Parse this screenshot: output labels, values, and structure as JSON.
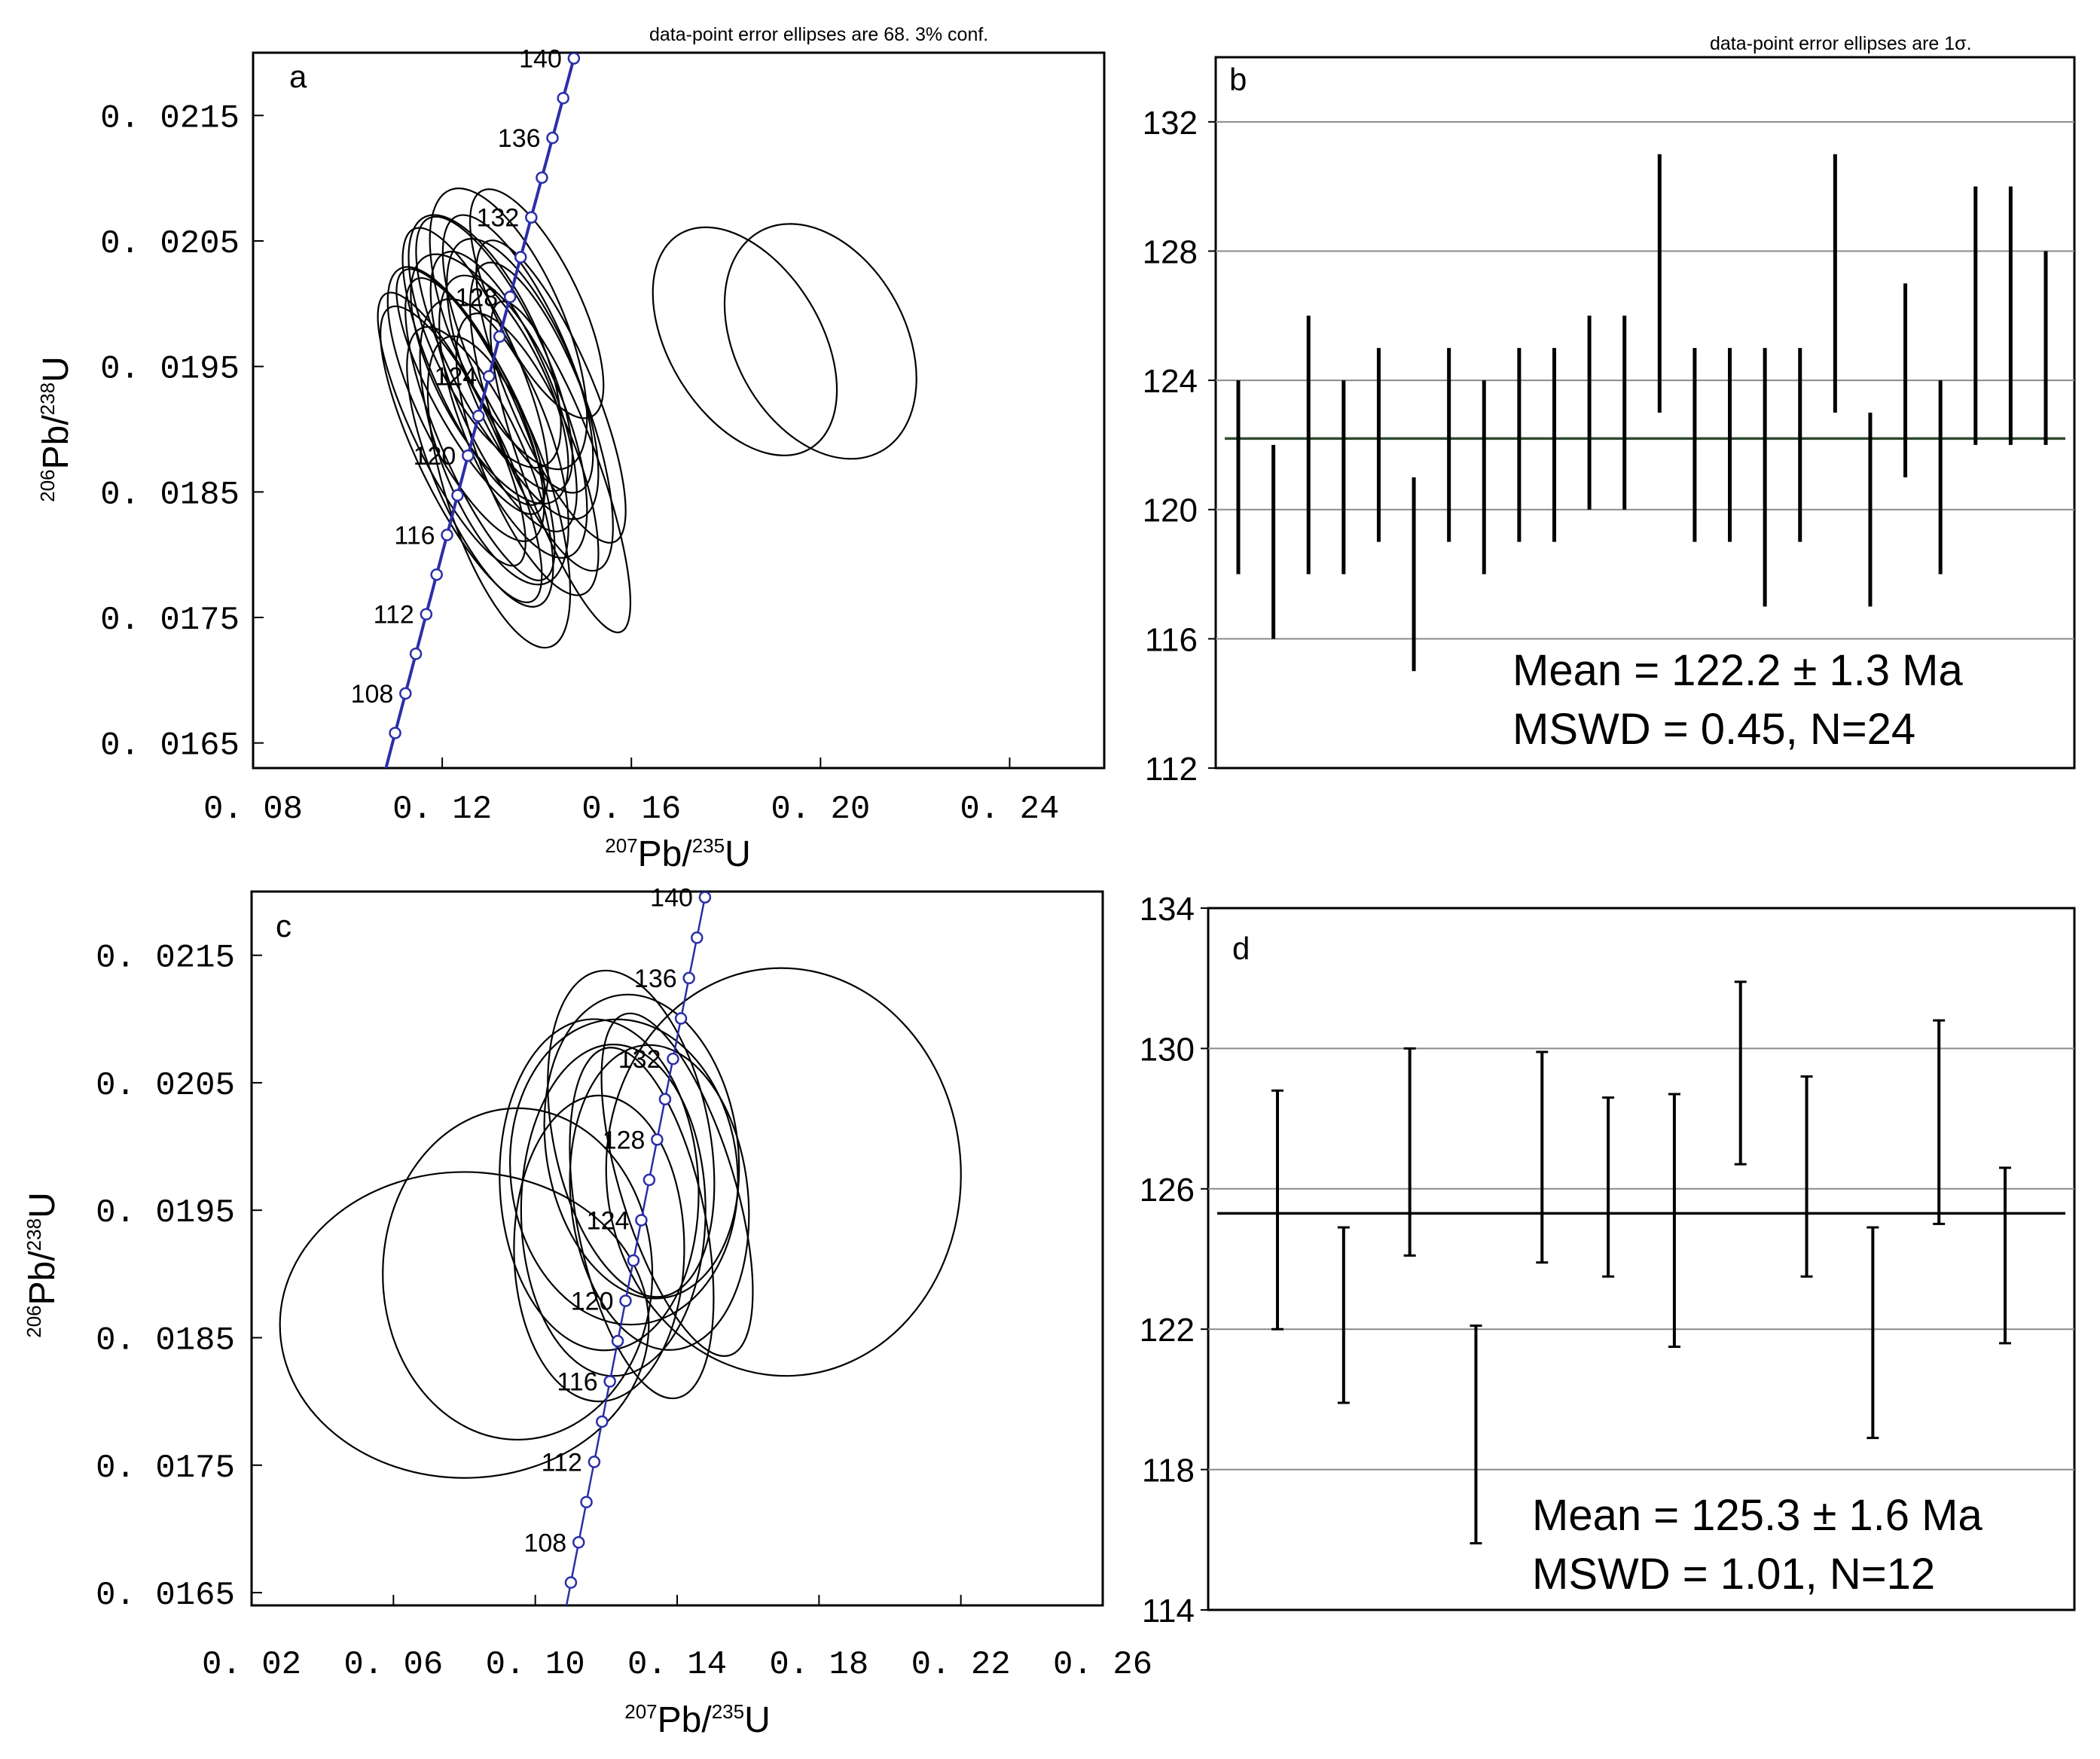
{
  "chart_data": [
    {
      "panel": "a",
      "type": "scatter",
      "subtype": "concordia",
      "note": "data-point error ellipses are 68. 3% conf.",
      "xlabel": {
        "sup": "207",
        "main": "Pb/",
        "sup2": "235",
        "tail": "U"
      },
      "ylabel": {
        "sup": "206",
        "main": "Pb/",
        "sup2": "238",
        "tail": "U"
      },
      "xlim": [
        0.08,
        0.26
      ],
      "ylim": [
        0.0163,
        0.022
      ],
      "xticks": [
        0.08,
        0.12,
        0.16,
        0.2,
        0.24
      ],
      "xtick_labels": [
        "0. 08",
        "0. 12",
        "0. 16",
        "0. 20",
        "0. 24"
      ],
      "yticks": [
        0.0165,
        0.0175,
        0.0185,
        0.0195,
        0.0205,
        0.0215
      ],
      "ytick_labels": [
        "0. 0165",
        "0. 0175",
        "0. 0185",
        "0. 0195",
        "0. 0205",
        "0. 0215"
      ],
      "concordia_labels": [
        "108",
        "112",
        "116",
        "120",
        "124",
        "128",
        "132",
        "136",
        "140"
      ],
      "concordia_ages": [
        108,
        112,
        116,
        120,
        124,
        128,
        132,
        136,
        140
      ],
      "ellipses": [
        {
          "x": 0.125,
          "y": 0.0192,
          "rx": 0.01,
          "ry": 0.0012,
          "rot": -0.45
        },
        {
          "x": 0.128,
          "y": 0.019,
          "rx": 0.009,
          "ry": 0.0013,
          "rot": -0.4
        },
        {
          "x": 0.13,
          "y": 0.0194,
          "rx": 0.011,
          "ry": 0.0011,
          "rot": -0.48
        },
        {
          "x": 0.127,
          "y": 0.0195,
          "rx": 0.009,
          "ry": 0.0012,
          "rot": -0.42
        },
        {
          "x": 0.133,
          "y": 0.0193,
          "rx": 0.01,
          "ry": 0.0012,
          "rot": -0.4
        },
        {
          "x": 0.124,
          "y": 0.0188,
          "rx": 0.009,
          "ry": 0.0013,
          "rot": -0.45
        },
        {
          "x": 0.131,
          "y": 0.0189,
          "rx": 0.012,
          "ry": 0.0012,
          "rot": -0.35
        },
        {
          "x": 0.136,
          "y": 0.0196,
          "rx": 0.01,
          "ry": 0.0012,
          "rot": -0.42
        },
        {
          "x": 0.129,
          "y": 0.0197,
          "rx": 0.011,
          "ry": 0.0011,
          "rot": -0.45
        },
        {
          "x": 0.134,
          "y": 0.0198,
          "rx": 0.012,
          "ry": 0.0012,
          "rot": -0.4
        },
        {
          "x": 0.126,
          "y": 0.0193,
          "rx": 0.008,
          "ry": 0.0011,
          "rot": -0.5
        },
        {
          "x": 0.131,
          "y": 0.0196,
          "rx": 0.01,
          "ry": 0.0012,
          "rot": -0.45
        },
        {
          "x": 0.135,
          "y": 0.0191,
          "rx": 0.011,
          "ry": 0.0012,
          "rot": -0.38
        },
        {
          "x": 0.137,
          "y": 0.0194,
          "rx": 0.011,
          "ry": 0.0012,
          "rot": -0.4
        },
        {
          "x": 0.128,
          "y": 0.0187,
          "rx": 0.01,
          "ry": 0.0012,
          "rot": -0.4
        },
        {
          "x": 0.14,
          "y": 0.02,
          "rx": 0.009,
          "ry": 0.001,
          "rot": -0.45
        },
        {
          "x": 0.141,
          "y": 0.0191,
          "rx": 0.01,
          "ry": 0.0013,
          "rot": -0.35
        },
        {
          "x": 0.132,
          "y": 0.0185,
          "rx": 0.011,
          "ry": 0.0013,
          "rot": -0.32
        },
        {
          "x": 0.138,
          "y": 0.0188,
          "rx": 0.01,
          "ry": 0.0012,
          "rot": -0.38
        },
        {
          "x": 0.145,
          "y": 0.0187,
          "rx": 0.008,
          "ry": 0.0014,
          "rot": -0.35
        },
        {
          "x": 0.143,
          "y": 0.0193,
          "rx": 0.009,
          "ry": 0.0013,
          "rot": -0.4
        },
        {
          "x": 0.122,
          "y": 0.019,
          "rx": 0.008,
          "ry": 0.0012,
          "rot": -0.45
        },
        {
          "x": 0.184,
          "y": 0.0197,
          "rx": 0.016,
          "ry": 0.001,
          "rot": -0.55
        },
        {
          "x": 0.2,
          "y": 0.0197,
          "rx": 0.018,
          "ry": 0.001,
          "rot": -0.5
        }
      ]
    },
    {
      "panel": "b",
      "type": "bar",
      "subtype": "weighted-mean",
      "note": "data-point error ellipses are 1σ.",
      "ylim": [
        112,
        134
      ],
      "yticks": [
        112,
        116,
        120,
        124,
        128,
        132
      ],
      "grid": true,
      "values": [
        {
          "low": 118,
          "high": 124
        },
        {
          "low": 116,
          "high": 122
        },
        {
          "low": 118,
          "high": 126
        },
        {
          "low": 118,
          "high": 124
        },
        {
          "low": 119,
          "high": 125
        },
        {
          "low": 115,
          "high": 121
        },
        {
          "low": 119,
          "high": 125
        },
        {
          "low": 118,
          "high": 124
        },
        {
          "low": 119,
          "high": 125
        },
        {
          "low": 119,
          "high": 125
        },
        {
          "low": 120,
          "high": 126
        },
        {
          "low": 120,
          "high": 126
        },
        {
          "low": 123,
          "high": 131
        },
        {
          "low": 119,
          "high": 125
        },
        {
          "low": 119,
          "high": 125
        },
        {
          "low": 117,
          "high": 125
        },
        {
          "low": 119,
          "high": 125
        },
        {
          "low": 123,
          "high": 131
        },
        {
          "low": 117,
          "high": 123
        },
        {
          "low": 121,
          "high": 127
        },
        {
          "low": 118,
          "high": 124
        },
        {
          "low": 122,
          "high": 130
        },
        {
          "low": 122,
          "high": 130
        },
        {
          "low": 122,
          "high": 128
        }
      ],
      "mean": 122.2,
      "stat_line1": "Mean = 122.2 ± 1.3  Ma",
      "stat_line2": "MSWD = 0.45, N=24"
    },
    {
      "panel": "c",
      "type": "scatter",
      "subtype": "concordia",
      "xlabel": {
        "sup": "207",
        "main": "Pb/",
        "sup2": "235",
        "tail": "U"
      },
      "ylabel": {
        "sup": "206",
        "main": "Pb/",
        "sup2": "238",
        "tail": "U"
      },
      "xlim": [
        0.02,
        0.26
      ],
      "ylim": [
        0.0164,
        0.022
      ],
      "xticks": [
        0.02,
        0.06,
        0.1,
        0.14,
        0.18,
        0.22,
        0.26
      ],
      "xtick_labels": [
        "0. 02",
        "0. 06",
        "0. 10",
        "0. 14",
        "0. 18",
        "0. 22",
        "0. 26"
      ],
      "yticks": [
        0.0165,
        0.0175,
        0.0185,
        0.0195,
        0.0205,
        0.0215
      ],
      "ytick_labels": [
        "0. 0165",
        "0. 0175",
        "0. 0185",
        "0. 0195",
        "0. 0205",
        "0. 0215"
      ],
      "concordia_labels": [
        "108",
        "112",
        "116",
        "120",
        "124",
        "128",
        "132",
        "136",
        "140"
      ],
      "concordia_ages": [
        108,
        112,
        116,
        120,
        124,
        128,
        132,
        136,
        140
      ],
      "ellipses": [
        {
          "x": 0.08,
          "y": 0.0186,
          "rx": 0.052,
          "ry": 0.0012,
          "rot": 0.0
        },
        {
          "x": 0.095,
          "y": 0.019,
          "rx": 0.038,
          "ry": 0.0013,
          "rot": 0.0
        },
        {
          "x": 0.17,
          "y": 0.0198,
          "rx": 0.05,
          "ry": 0.0016,
          "rot": -0.05
        },
        {
          "x": 0.125,
          "y": 0.0198,
          "rx": 0.032,
          "ry": 0.0012,
          "rot": -0.1
        },
        {
          "x": 0.118,
          "y": 0.0197,
          "rx": 0.028,
          "ry": 0.0013,
          "rot": -0.05
        },
        {
          "x": 0.13,
          "y": 0.02,
          "rx": 0.027,
          "ry": 0.0012,
          "rot": -0.15
        },
        {
          "x": 0.122,
          "y": 0.0195,
          "rx": 0.026,
          "ry": 0.0013,
          "rot": 0.0
        },
        {
          "x": 0.135,
          "y": 0.0196,
          "rx": 0.025,
          "ry": 0.0012,
          "rot": -0.1
        },
        {
          "x": 0.127,
          "y": 0.0201,
          "rx": 0.022,
          "ry": 0.0013,
          "rot": -0.2
        },
        {
          "x": 0.14,
          "y": 0.0197,
          "rx": 0.016,
          "ry": 0.0014,
          "rot": -0.3
        },
        {
          "x": 0.118,
          "y": 0.0192,
          "rx": 0.024,
          "ry": 0.0012,
          "rot": 0.0
        },
        {
          "x": 0.13,
          "y": 0.0194,
          "rx": 0.018,
          "ry": 0.0014,
          "rot": -0.2
        }
      ]
    },
    {
      "panel": "d",
      "type": "bar",
      "subtype": "weighted-mean",
      "ylim": [
        114,
        134
      ],
      "yticks": [
        114,
        118,
        122,
        126,
        130,
        134
      ],
      "grid": true,
      "values": [
        {
          "low": 122.0,
          "high": 128.8
        },
        {
          "low": 119.9,
          "high": 124.9
        },
        {
          "low": 124.1,
          "high": 130.0
        },
        {
          "low": 115.9,
          "high": 122.1
        },
        {
          "low": 123.9,
          "high": 129.9
        },
        {
          "low": 123.5,
          "high": 128.6
        },
        {
          "low": 121.5,
          "high": 128.7
        },
        {
          "low": 126.7,
          "high": 131.9
        },
        {
          "low": 123.5,
          "high": 129.2
        },
        {
          "low": 118.9,
          "high": 124.9
        },
        {
          "low": 125.0,
          "high": 130.8
        },
        {
          "low": 121.6,
          "high": 126.6
        }
      ],
      "mean": 125.3,
      "stat_line1": "Mean = 125.3 ± 1.6  Ma",
      "stat_line2": "MSWD = 1.01, N=12"
    }
  ],
  "colors": {
    "concordia": "#2a2fa8",
    "ink": "#000000",
    "grid": "#8a8a8a",
    "mean_line_b": "#2f4a2f"
  },
  "panel_labels": [
    "a",
    "b",
    "c",
    "d"
  ]
}
